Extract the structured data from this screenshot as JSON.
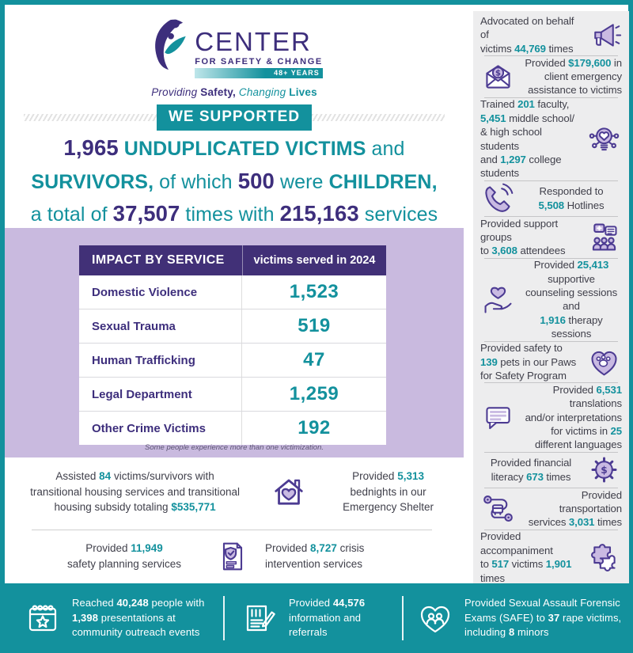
{
  "colors": {
    "teal": "#13919D",
    "purple": "#3D2E7C",
    "header_purple": "#413077",
    "lavender": "#C9BADF",
    "sidebar_gray": "#EDEDEE",
    "icon_purple": "#4C3B92",
    "icon_fill": "#C9BAE2",
    "text_dark": "#3F3F4A",
    "white": "#FFFFFF"
  },
  "logo": {
    "name": "CENTER",
    "subname": "FOR SAFETY & CHANGE",
    "years": "48+ YEARS",
    "mark": "center-logo-swoosh-icon",
    "tagline_segments": [
      {
        "t": "Providing ",
        "s": "pi"
      },
      {
        "t": "Safety,",
        "s": "pb"
      },
      {
        "t": " ",
        "s": ""
      },
      {
        "t": "Changing",
        "s": "ti"
      },
      {
        "t": " ",
        "s": ""
      },
      {
        "t": "Lives",
        "s": "tb"
      }
    ]
  },
  "headline": {
    "badge": "WE SUPPORTED",
    "segments": [
      {
        "t": "1,965",
        "s": "p"
      },
      {
        "t": " ",
        "s": ""
      },
      {
        "t": "UNDUPLICATED VICTIMS",
        "s": "t"
      },
      {
        "t": " and",
        "s": ""
      },
      {
        "br": true
      },
      {
        "t": "SURVIVORS,",
        "s": "t"
      },
      {
        "t": " of which ",
        "s": ""
      },
      {
        "t": "500",
        "s": "p"
      },
      {
        "t": " were ",
        "s": ""
      },
      {
        "t": "CHILDREN,",
        "s": "t"
      },
      {
        "br": true
      },
      {
        "t": "a total of ",
        "s": ""
      },
      {
        "t": "37,507",
        "s": "p"
      },
      {
        "t": " times with ",
        "s": ""
      },
      {
        "t": "215,163",
        "s": "p"
      },
      {
        "t": " services",
        "s": ""
      }
    ]
  },
  "table": {
    "header_left": "IMPACT BY SERVICE",
    "header_right": "victims served in 2024",
    "rows": [
      {
        "label": "Domestic Violence",
        "value": "1,523"
      },
      {
        "label": "Sexual Trauma",
        "value": "519"
      },
      {
        "label": "Human Trafficking",
        "value": "47"
      },
      {
        "label": "Legal Department",
        "value": "1,259"
      },
      {
        "label": "Other Crime Victims",
        "value": "192"
      }
    ],
    "note": "Some people experience more than one victimization."
  },
  "housing": {
    "row1_left": [
      {
        "t": "Assisted ",
        "s": ""
      },
      {
        "t": "84",
        "s": "n"
      },
      {
        "t": " victims/survivors with",
        "s": ""
      },
      {
        "br": true
      },
      {
        "t": "transitional housing services and transitional",
        "s": ""
      },
      {
        "br": true
      },
      {
        "t": "housing subsidy totaling ",
        "s": ""
      },
      {
        "t": "$535,771",
        "s": "n"
      }
    ],
    "row1_icon": "house-heart-icon",
    "row1_right": [
      {
        "t": "Provided ",
        "s": ""
      },
      {
        "t": "5,313",
        "s": "n"
      },
      {
        "br": true
      },
      {
        "t": "bednights in our",
        "s": ""
      },
      {
        "br": true
      },
      {
        "t": "Emergency Shelter",
        "s": ""
      }
    ],
    "row2_left": [
      {
        "t": "Provided ",
        "s": ""
      },
      {
        "t": "11,949",
        "s": "n"
      },
      {
        "br": true
      },
      {
        "t": "safety planning services",
        "s": ""
      }
    ],
    "row2_icon": "safety-plan-doc-icon",
    "row2_right": [
      {
        "t": "Provided ",
        "s": ""
      },
      {
        "t": "8,727",
        "s": "n"
      },
      {
        "t": " crisis",
        "s": ""
      },
      {
        "br": true
      },
      {
        "t": "intervention services",
        "s": ""
      }
    ]
  },
  "sidebar": {
    "items": [
      {
        "icon": "megaphone-icon",
        "side": "right",
        "align": "left",
        "text": [
          {
            "t": "Advocated on behalf of",
            "s": ""
          },
          {
            "br": true
          },
          {
            "t": "victims ",
            "s": ""
          },
          {
            "t": "44,769",
            "s": "n"
          },
          {
            "t": " times",
            "s": ""
          }
        ]
      },
      {
        "icon": "envelope-dollar-icon",
        "side": "left",
        "align": "right",
        "text": [
          {
            "t": "Provided ",
            "s": ""
          },
          {
            "t": "$179,600",
            "s": "n"
          },
          {
            "t": " in",
            "s": ""
          },
          {
            "br": true
          },
          {
            "t": "client emergency",
            "s": ""
          },
          {
            "br": true
          },
          {
            "t": "assistance to victims",
            "s": ""
          }
        ]
      },
      {
        "icon": "training-idea-icon",
        "side": "right",
        "align": "left",
        "text": [
          {
            "t": "Trained ",
            "s": ""
          },
          {
            "t": "201",
            "s": "n"
          },
          {
            "t": " faculty,",
            "s": ""
          },
          {
            "br": true
          },
          {
            "t": "5,451",
            "s": "n"
          },
          {
            "t": " middle school/",
            "s": ""
          },
          {
            "br": true
          },
          {
            "t": "& high school students",
            "s": ""
          },
          {
            "br": true
          },
          {
            "t": "and ",
            "s": ""
          },
          {
            "t": "1,297",
            "s": "n"
          },
          {
            "t": " college students",
            "s": ""
          }
        ]
      },
      {
        "icon": "phone-hotline-icon",
        "side": "left",
        "align": "center",
        "text": [
          {
            "t": "Responded to",
            "s": ""
          },
          {
            "br": true
          },
          {
            "t": "5,508",
            "s": "n"
          },
          {
            "t": " Hotlines",
            "s": ""
          }
        ]
      },
      {
        "icon": "support-group-icon",
        "side": "right",
        "align": "left",
        "text": [
          {
            "t": "Provided support groups",
            "s": ""
          },
          {
            "br": true
          },
          {
            "t": "to ",
            "s": ""
          },
          {
            "t": "3,608",
            "s": "n"
          },
          {
            "t": " attendees",
            "s": ""
          }
        ]
      },
      {
        "icon": "hand-heart-icon",
        "side": "left",
        "align": "center",
        "text": [
          {
            "t": "Provided ",
            "s": ""
          },
          {
            "t": "25,413",
            "s": "n"
          },
          {
            "t": " supportive",
            "s": ""
          },
          {
            "br": true
          },
          {
            "t": "counseling sessions and",
            "s": ""
          },
          {
            "br": true
          },
          {
            "t": "1,916",
            "s": "n"
          },
          {
            "t": " therapy sessions",
            "s": ""
          }
        ]
      },
      {
        "icon": "paw-heart-icon",
        "side": "right",
        "align": "left",
        "text": [
          {
            "t": "Provided safety to",
            "s": ""
          },
          {
            "br": true
          },
          {
            "t": "139",
            "s": "n"
          },
          {
            "t": " pets in our Paws",
            "s": ""
          },
          {
            "br": true
          },
          {
            "t": "for Safety Program",
            "s": ""
          }
        ]
      },
      {
        "icon": "speech-bubble-icon",
        "side": "left",
        "align": "right",
        "text": [
          {
            "t": "Provided ",
            "s": ""
          },
          {
            "t": "6,531",
            "s": "n"
          },
          {
            "t": " translations",
            "s": ""
          },
          {
            "br": true
          },
          {
            "t": "and/or interpretations",
            "s": ""
          },
          {
            "br": true
          },
          {
            "t": "for victims in ",
            "s": ""
          },
          {
            "t": "25",
            "s": "n"
          },
          {
            "br": true
          },
          {
            "t": "different languages",
            "s": ""
          }
        ]
      },
      {
        "icon": "gear-dollar-icon",
        "side": "right",
        "align": "center",
        "text": [
          {
            "t": "Provided financial",
            "s": ""
          },
          {
            "br": true
          },
          {
            "t": "literacy ",
            "s": ""
          },
          {
            "t": "673",
            "s": "n"
          },
          {
            "t": " times",
            "s": ""
          }
        ]
      },
      {
        "icon": "transportation-route-icon",
        "side": "left",
        "align": "right",
        "text": [
          {
            "t": "Provided transportation",
            "s": ""
          },
          {
            "br": true
          },
          {
            "t": "services ",
            "s": ""
          },
          {
            "t": "3,031",
            "s": "n"
          },
          {
            "t": " times",
            "s": ""
          }
        ]
      },
      {
        "icon": "puzzle-accompaniment-icon",
        "side": "right",
        "align": "left",
        "text": [
          {
            "t": "Provided accompaniment",
            "s": ""
          },
          {
            "br": true
          },
          {
            "t": "to ",
            "s": ""
          },
          {
            "t": "517",
            "s": "n"
          },
          {
            "t": " victims ",
            "s": ""
          },
          {
            "t": "1,901",
            "s": "n"
          },
          {
            "t": " times",
            "s": ""
          }
        ]
      }
    ]
  },
  "footer": {
    "items": [
      {
        "icon": "calendar-star-icon",
        "text": [
          {
            "t": "Reached ",
            "s": ""
          },
          {
            "t": "40,248",
            "s": "w"
          },
          {
            "t": " people with",
            "s": ""
          },
          {
            "br": true
          },
          {
            "t": "1,398",
            "s": "w"
          },
          {
            "t": " presentations at",
            "s": ""
          },
          {
            "br": true
          },
          {
            "t": "community outreach events",
            "s": ""
          }
        ]
      },
      {
        "icon": "information-referral-icon",
        "text": [
          {
            "t": "Provided ",
            "s": ""
          },
          {
            "t": "44,576",
            "s": "w"
          },
          {
            "br": true
          },
          {
            "t": "information and referrals",
            "s": ""
          }
        ]
      },
      {
        "icon": "safe-exam-heart-icon",
        "text": [
          {
            "t": "Provided Sexual Assault Forensic",
            "s": ""
          },
          {
            "br": true
          },
          {
            "t": "Exams (SAFE) to ",
            "s": ""
          },
          {
            "t": "37",
            "s": "w"
          },
          {
            "t": " rape victims,",
            "s": ""
          },
          {
            "br": true
          },
          {
            "t": "including ",
            "s": ""
          },
          {
            "t": "8",
            "s": "w"
          },
          {
            "t": " minors",
            "s": ""
          }
        ]
      }
    ]
  }
}
